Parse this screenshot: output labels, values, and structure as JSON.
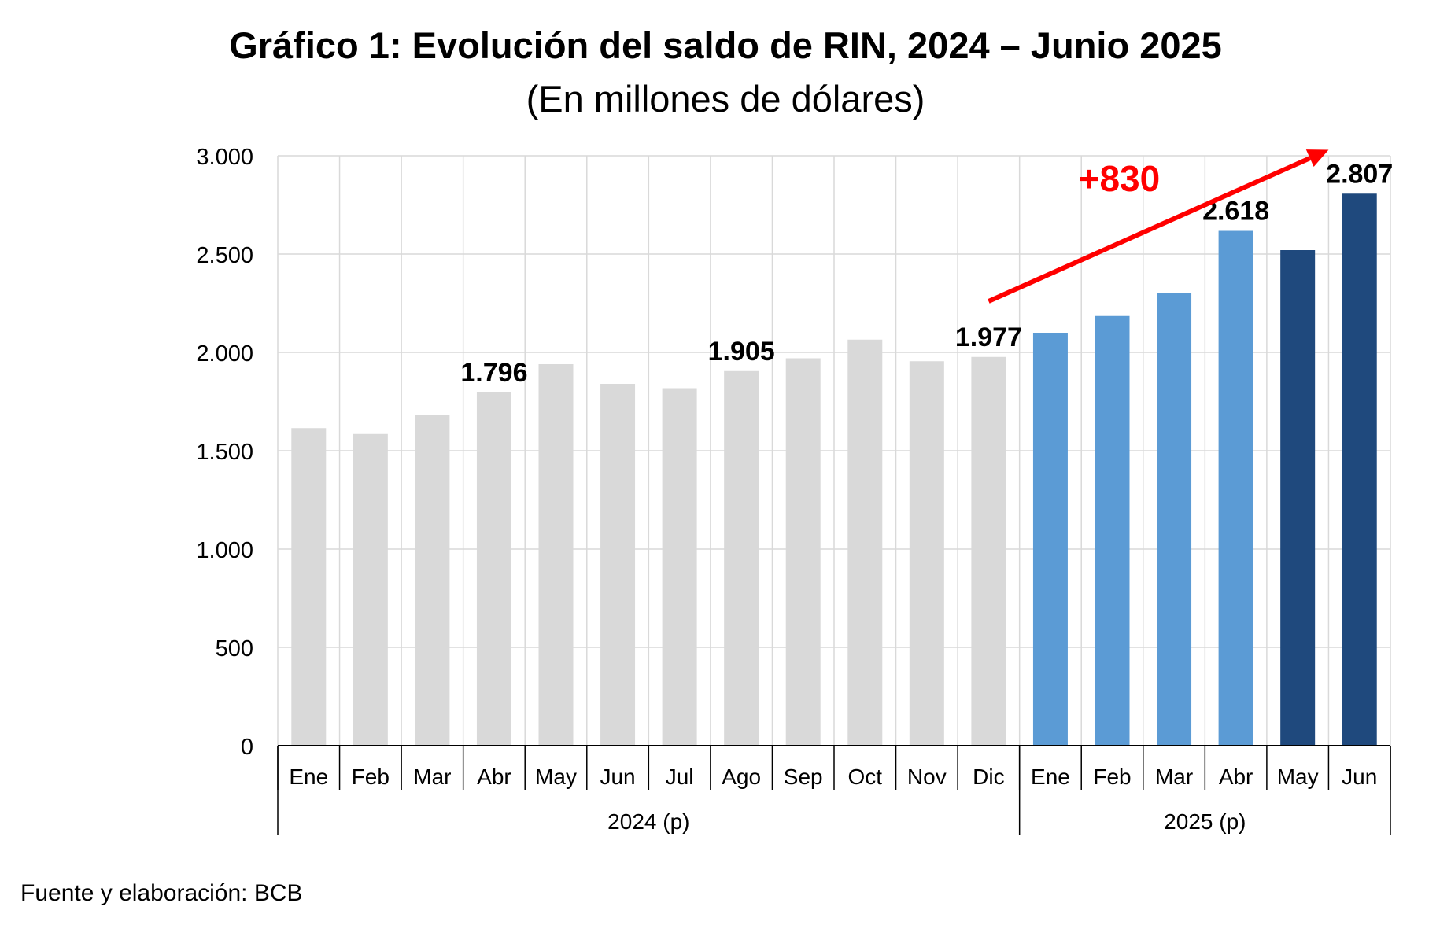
{
  "header": {
    "title": "Gráfico 1: Evolución del saldo de RIN, 2024 – Junio 2025",
    "subtitle": "(En millones de dólares)"
  },
  "footer": {
    "source": "Fuente y elaboración: BCB"
  },
  "chart_data": {
    "type": "bar",
    "title": "Gráfico 1: Evolución del saldo de RIN, 2024 – Junio 2025",
    "subtitle": "(En millones de dólares)",
    "xlabel": "",
    "ylabel": "",
    "ylim": [
      0,
      3000
    ],
    "yticks": [
      0,
      500,
      1000,
      1500,
      2000,
      2500,
      3000
    ],
    "ytick_labels": [
      "0",
      "500",
      "1.000",
      "1.500",
      "2.000",
      "2.500",
      "3.000"
    ],
    "grid": true,
    "categories": [
      "Ene",
      "Feb",
      "Mar",
      "Abr",
      "May",
      "Jun",
      "Jul",
      "Ago",
      "Sep",
      "Oct",
      "Nov",
      "Dic",
      "Ene",
      "Feb",
      "Mar",
      "Abr",
      "May",
      "Jun"
    ],
    "groups": [
      {
        "label": "2024 (p)",
        "count": 12
      },
      {
        "label": "2025 (p)",
        "count": 6
      }
    ],
    "values": [
      1615,
      1585,
      1680,
      1796,
      1940,
      1840,
      1818,
      1905,
      1970,
      2065,
      1955,
      1977,
      2100,
      2185,
      2300,
      2618,
      2520,
      2807
    ],
    "bar_colors": [
      "#d9d9d9",
      "#d9d9d9",
      "#d9d9d9",
      "#d9d9d9",
      "#d9d9d9",
      "#d9d9d9",
      "#d9d9d9",
      "#d9d9d9",
      "#d9d9d9",
      "#d9d9d9",
      "#d9d9d9",
      "#d9d9d9",
      "#5b9bd5",
      "#5b9bd5",
      "#5b9bd5",
      "#5b9bd5",
      "#1f497d",
      "#1f497d"
    ],
    "data_labels": [
      {
        "index": 3,
        "text": "1.796"
      },
      {
        "index": 7,
        "text": "1.905"
      },
      {
        "index": 11,
        "text": "1.977"
      },
      {
        "index": 15,
        "text": "2.618"
      },
      {
        "index": 17,
        "text": "2.807"
      }
    ],
    "annotation": {
      "text": "+830",
      "color": "#ff0000",
      "arrow_from": {
        "index": 11,
        "value": 2260
      },
      "arrow_to": {
        "index": 16.5,
        "value": 3030
      }
    },
    "colors": {
      "grid": "#d9d9d9",
      "axis": "#000000",
      "annotation": "#ff0000"
    }
  }
}
